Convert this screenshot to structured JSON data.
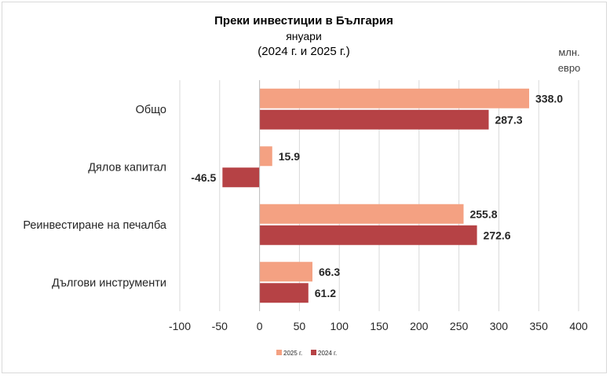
{
  "chart_data": {
    "type": "bar",
    "orientation": "horizontal",
    "title": "Преки инвестиции в България",
    "subtitle_lines": [
      "януари",
      "(2024 г. и 2025 г.)"
    ],
    "unit_lines": [
      "млн.",
      "евро"
    ],
    "categories": [
      "Общо",
      "Дялов капитал",
      "Реинвестиране на печалба",
      "Дългови инструменти"
    ],
    "series": [
      {
        "name": "2025 г.",
        "color": "#f4a182",
        "values": [
          338.0,
          15.9,
          255.8,
          66.3
        ]
      },
      {
        "name": "2024 г.",
        "color": "#b64245",
        "values": [
          287.3,
          -46.5,
          272.6,
          61.2
        ]
      }
    ],
    "xlim": [
      -100,
      400
    ],
    "xticks": [
      -100,
      -50,
      0,
      50,
      100,
      150,
      200,
      250,
      300,
      350,
      400
    ],
    "grid": true,
    "legend_position": "bottom-center"
  }
}
